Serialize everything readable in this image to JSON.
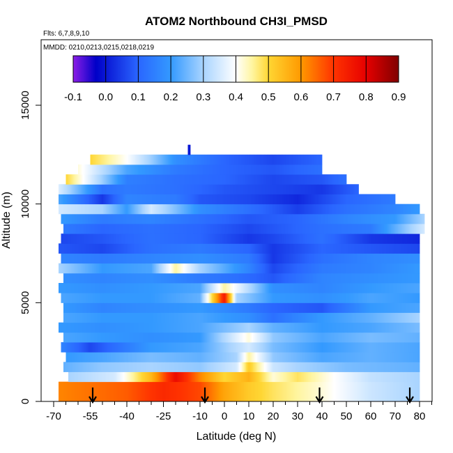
{
  "chart_data": {
    "type": "heatmap",
    "title": "ATOM2 Northbound CH3I_PMSD",
    "flights_note": "Flts: 6,7,8,9,10",
    "dates_note": "MMDD: 0210,0213,0215,0218,0219",
    "xlabel": "Latitude (deg N)",
    "ylabel": "Altitude (m)",
    "xlim": [
      -70,
      85
    ],
    "ylim": [
      0,
      17500
    ],
    "x_ticks": [
      -70,
      -55,
      -40,
      -25,
      -10,
      0,
      10,
      20,
      30,
      40,
      50,
      60,
      70,
      80
    ],
    "y_ticks": [
      0,
      5000,
      10000,
      15000
    ],
    "colorbar": {
      "ticks": [
        -0.1,
        0.0,
        0.1,
        0.2,
        0.3,
        0.4,
        0.5,
        0.6,
        0.7,
        0.8,
        0.9
      ],
      "tick_labels": [
        "-0.1",
        "0.0",
        "0.1",
        "0.2",
        "0.3",
        "0.4",
        "0.5",
        "0.6",
        "0.7",
        "0.8",
        "0.9"
      ],
      "range": [
        -0.1,
        0.9
      ],
      "stops": [
        {
          "value": -0.1,
          "color": "#8c1ee6"
        },
        {
          "value": -0.03,
          "color": "#0000c8"
        },
        {
          "value": 0.1,
          "color": "#2a66ff"
        },
        {
          "value": 0.2,
          "color": "#3399ff"
        },
        {
          "value": 0.3,
          "color": "#a9d4ff"
        },
        {
          "value": 0.4,
          "color": "#ffffff"
        },
        {
          "value": 0.45,
          "color": "#fff5a0"
        },
        {
          "value": 0.5,
          "color": "#ffd633"
        },
        {
          "value": 0.6,
          "color": "#ff9900"
        },
        {
          "value": 0.7,
          "color": "#ff3300"
        },
        {
          "value": 0.8,
          "color": "#e60000"
        },
        {
          "value": 0.9,
          "color": "#800000"
        }
      ]
    },
    "profile_latitudes": [
      -54,
      -8,
      39,
      76
    ],
    "layer_altitudes": [
      0,
      1000,
      1500,
      2000,
      2500,
      3000,
      3500,
      4000,
      4500,
      5000,
      5500,
      6000,
      6500,
      7000,
      7500,
      8000,
      8500,
      9000,
      9500,
      10000,
      10500,
      11000,
      11500,
      12000,
      12500
    ],
    "layers": [
      {
        "alt": 0,
        "lat0": -68,
        "lat1": 80,
        "x": [
          -68,
          -40,
          -25,
          -10,
          0,
          10,
          20,
          30,
          40,
          50,
          60,
          70,
          80
        ],
        "v": [
          0.62,
          0.66,
          0.72,
          0.68,
          0.58,
          0.52,
          0.48,
          0.45,
          0.42,
          0.38,
          0.34,
          0.32,
          0.3
        ]
      },
      {
        "alt": 1000,
        "lat0": -64,
        "lat1": 80,
        "x": [
          -64,
          -45,
          -30,
          -20,
          -10,
          0,
          10,
          20,
          30,
          45,
          60,
          80
        ],
        "v": [
          0.3,
          0.35,
          0.55,
          0.78,
          0.62,
          0.5,
          0.56,
          0.42,
          0.48,
          0.4,
          0.33,
          0.3
        ]
      },
      {
        "alt": 1500,
        "lat0": -66,
        "lat1": 80,
        "x": [
          -66,
          -50,
          -30,
          -10,
          5,
          10,
          20,
          30,
          50,
          80
        ],
        "v": [
          0.24,
          0.28,
          0.3,
          0.28,
          0.35,
          0.52,
          0.34,
          0.3,
          0.26,
          0.24
        ]
      },
      {
        "alt": 2000,
        "lat0": -65,
        "lat1": 80,
        "x": [
          -65,
          -50,
          -30,
          -10,
          5,
          10,
          20,
          40,
          60,
          80
        ],
        "v": [
          0.2,
          0.22,
          0.26,
          0.24,
          0.3,
          0.45,
          0.28,
          0.22,
          0.24,
          0.22
        ]
      },
      {
        "alt": 2500,
        "lat0": -67,
        "lat1": 80,
        "x": [
          -67,
          -55,
          -30,
          -10,
          10,
          20,
          40,
          60,
          80
        ],
        "v": [
          0.16,
          0.06,
          0.2,
          0.22,
          0.35,
          0.26,
          0.2,
          0.24,
          0.22
        ]
      },
      {
        "alt": 3000,
        "lat0": -66,
        "lat1": 80,
        "x": [
          -66,
          -50,
          -30,
          -10,
          10,
          20,
          40,
          60,
          80
        ],
        "v": [
          0.22,
          0.2,
          0.18,
          0.2,
          0.42,
          0.28,
          0.22,
          0.26,
          0.24
        ]
      },
      {
        "alt": 3500,
        "lat0": -68,
        "lat1": 80,
        "x": [
          -68,
          -50,
          -30,
          -10,
          10,
          20,
          40,
          60,
          80
        ],
        "v": [
          0.2,
          0.18,
          0.2,
          0.22,
          0.3,
          0.24,
          0.2,
          0.22,
          0.26
        ]
      },
      {
        "alt": 4000,
        "lat0": -66,
        "lat1": 80,
        "x": [
          -66,
          -50,
          -30,
          -10,
          10,
          20,
          40,
          60,
          80
        ],
        "v": [
          0.22,
          0.2,
          0.2,
          0.22,
          0.18,
          0.12,
          0.2,
          0.24,
          0.3
        ]
      },
      {
        "alt": 4500,
        "lat0": -66,
        "lat1": 80,
        "x": [
          -66,
          -50,
          -30,
          -10,
          10,
          20,
          40,
          60,
          80
        ],
        "v": [
          0.2,
          0.16,
          0.18,
          0.2,
          0.14,
          0.1,
          0.08,
          0.2,
          0.22
        ]
      },
      {
        "alt": 5000,
        "lat0": -67,
        "lat1": 80,
        "x": [
          -67,
          -50,
          -30,
          -10,
          0,
          5,
          20,
          40,
          60,
          80
        ],
        "v": [
          0.22,
          0.2,
          0.2,
          0.24,
          0.75,
          0.3,
          0.2,
          0.18,
          0.22,
          0.2
        ]
      },
      {
        "alt": 5500,
        "lat0": -68,
        "lat1": 80,
        "x": [
          -68,
          -50,
          -30,
          -10,
          0,
          20,
          40,
          60,
          80
        ],
        "v": [
          0.2,
          0.18,
          0.2,
          0.22,
          0.45,
          0.18,
          0.16,
          0.2,
          0.22
        ]
      },
      {
        "alt": 6000,
        "lat0": -66,
        "lat1": 80,
        "x": [
          -66,
          -50,
          -30,
          -10,
          5,
          20,
          40,
          60,
          80
        ],
        "v": [
          0.18,
          0.16,
          0.18,
          0.14,
          0.12,
          0.08,
          0.16,
          0.18,
          0.2
        ]
      },
      {
        "alt": 6500,
        "lat0": -68,
        "lat1": 80,
        "x": [
          -68,
          -50,
          -30,
          -20,
          -10,
          10,
          20,
          40,
          60,
          80
        ],
        "v": [
          0.3,
          0.2,
          0.22,
          0.45,
          0.3,
          0.16,
          0.06,
          0.14,
          0.16,
          0.2
        ]
      },
      {
        "alt": 7000,
        "lat0": -67,
        "lat1": 80,
        "x": [
          -67,
          -50,
          -30,
          -10,
          10,
          20,
          40,
          60,
          80
        ],
        "v": [
          0.16,
          0.14,
          0.16,
          0.18,
          0.14,
          0.04,
          0.12,
          0.16,
          0.18
        ]
      },
      {
        "alt": 7500,
        "lat0": -68,
        "lat1": 80,
        "x": [
          -68,
          -50,
          -30,
          -10,
          10,
          20,
          40,
          60,
          80
        ],
        "v": [
          0.08,
          0.06,
          0.12,
          0.14,
          0.1,
          0.04,
          0.1,
          0.08,
          0.06
        ]
      },
      {
        "alt": 8000,
        "lat0": -67,
        "lat1": 80,
        "x": [
          -67,
          -50,
          -30,
          -10,
          10,
          20,
          40,
          60,
          80
        ],
        "v": [
          0.06,
          0.08,
          0.12,
          0.1,
          0.04,
          0.06,
          0.12,
          0.04,
          0.02
        ]
      },
      {
        "alt": 8500,
        "lat0": -66,
        "lat1": 82,
        "x": [
          -66,
          -50,
          -30,
          -10,
          10,
          20,
          40,
          60,
          82
        ],
        "v": [
          0.14,
          0.1,
          0.12,
          0.1,
          0.06,
          0.08,
          0.12,
          0.14,
          0.35
        ]
      },
      {
        "alt": 9000,
        "lat0": -67,
        "lat1": 82,
        "x": [
          -67,
          -50,
          -30,
          -10,
          10,
          30,
          50,
          70,
          82
        ],
        "v": [
          0.2,
          0.14,
          0.16,
          0.12,
          0.08,
          0.1,
          0.16,
          0.2,
          0.3
        ]
      },
      {
        "alt": 9500,
        "lat0": -68,
        "lat1": 80,
        "x": [
          -68,
          -50,
          -40,
          -30,
          -10,
          10,
          30,
          50,
          70,
          80
        ],
        "v": [
          0.35,
          0.3,
          0.2,
          0.35,
          0.18,
          0.12,
          0.05,
          0.12,
          0.16,
          0.2
        ]
      },
      {
        "alt": 10000,
        "lat0": -68,
        "lat1": 70,
        "x": [
          -68,
          -50,
          -40,
          -20,
          -10,
          10,
          30,
          50,
          70
        ],
        "v": [
          0.22,
          0.04,
          0.16,
          0.14,
          0.08,
          0.06,
          0.02,
          0.1,
          0.14
        ]
      },
      {
        "alt": 10500,
        "lat0": -68,
        "lat1": 55,
        "x": [
          -68,
          -50,
          -40,
          -20,
          0,
          20,
          40,
          55
        ],
        "v": [
          0.36,
          0.12,
          0.14,
          0.12,
          0.08,
          0.06,
          0.04,
          0.1
        ]
      },
      {
        "alt": 11000,
        "lat0": -65,
        "lat1": 50,
        "x": [
          -65,
          -40,
          -20,
          0,
          20,
          40,
          50
        ],
        "v": [
          0.5,
          0.15,
          0.12,
          0.1,
          0.06,
          0.08,
          0.12
        ]
      },
      {
        "alt": 11500,
        "lat0": -60,
        "lat1": 40,
        "x": [
          -60,
          -40,
          -20,
          0,
          20,
          40
        ],
        "v": [
          0.42,
          0.22,
          0.14,
          0.1,
          0.08,
          0.12
        ]
      },
      {
        "alt": 12000,
        "lat0": -55,
        "lat1": 40,
        "x": [
          -55,
          -40,
          -20,
          0,
          20,
          40
        ],
        "v": [
          0.5,
          0.4,
          0.18,
          0.1,
          0.06,
          0.1
        ]
      },
      {
        "alt": 12500,
        "lat0": -15,
        "lat1": -14,
        "x": [
          -15,
          -14
        ],
        "v": [
          0.0,
          0.0
        ]
      }
    ]
  }
}
